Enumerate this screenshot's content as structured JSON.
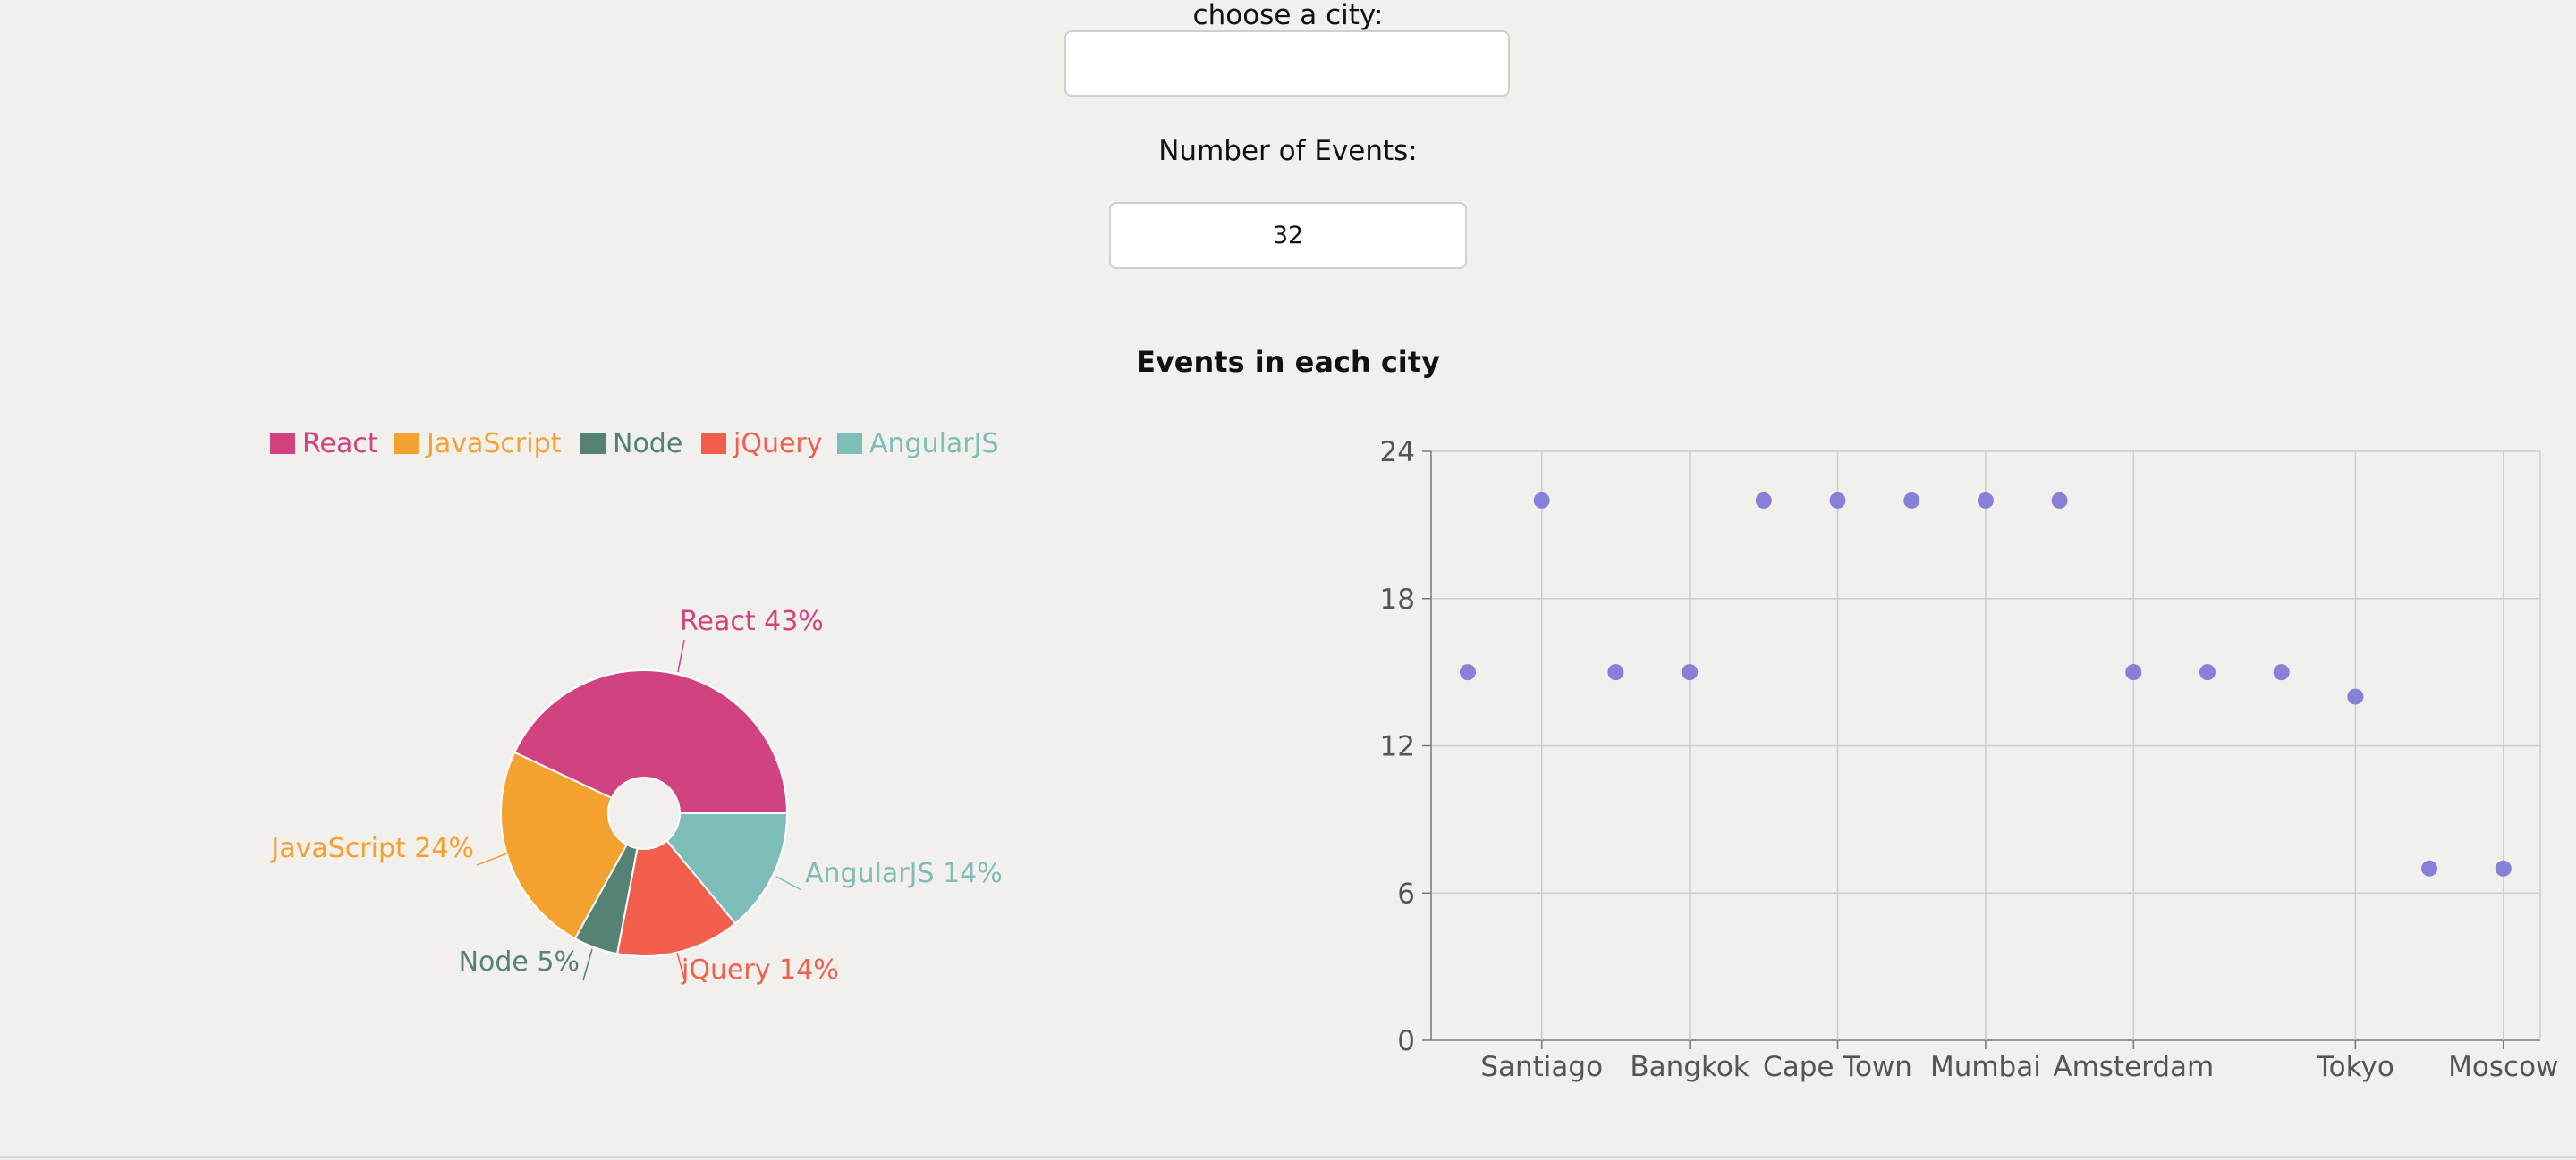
{
  "city_filter": {
    "label": "choose a city:",
    "value": "",
    "placeholder": ""
  },
  "event_count": {
    "label": "Number of Events:",
    "value": "32"
  },
  "section_title": "Events in each city",
  "colors": {
    "React": "#d04380",
    "JavaScript": "#f5a130",
    "Node": "#558272",
    "jQuery": "#f25e4c",
    "AngularJS": "#7fbdb8",
    "scatter_point": "#8880d8",
    "grid": "#cccccc",
    "axis_text": "#555555"
  },
  "chart_data": [
    {
      "type": "pie",
      "legend_position": "top",
      "slices": [
        {
          "name": "React",
          "value": 43,
          "label": "React 43%"
        },
        {
          "name": "AngularJS",
          "value": 14,
          "label": "AngularJS 14%"
        },
        {
          "name": "jQuery",
          "value": 14,
          "label": "jQuery 14%"
        },
        {
          "name": "Node",
          "value": 5,
          "label": "Node 5%"
        },
        {
          "name": "JavaScript",
          "value": 24,
          "label": "JavaScript 24%"
        }
      ],
      "legend": [
        "React",
        "JavaScript",
        "Node",
        "jQuery",
        "AngularJS"
      ]
    },
    {
      "type": "scatter",
      "x_tick_labels": [
        "Santiago",
        "Bangkok",
        "Cape Town",
        "Mumbai",
        "Amsterdam",
        "Tokyo",
        "Moscow"
      ],
      "y_ticks": [
        0,
        6,
        12,
        18,
        24
      ],
      "ylim": [
        0,
        24
      ],
      "grid": true,
      "points": [
        {
          "x": 0,
          "y": 15
        },
        {
          "x": 1,
          "y": 22
        },
        {
          "x": 2,
          "y": 15
        },
        {
          "x": 3,
          "y": 15
        },
        {
          "x": 4,
          "y": 22
        },
        {
          "x": 5,
          "y": 22
        },
        {
          "x": 6,
          "y": 22
        },
        {
          "x": 7,
          "y": 22
        },
        {
          "x": 8,
          "y": 22
        },
        {
          "x": 9,
          "y": 15
        },
        {
          "x": 10,
          "y": 15
        },
        {
          "x": 11,
          "y": 15
        },
        {
          "x": 12,
          "y": 14
        },
        {
          "x": 13,
          "y": 7
        },
        {
          "x": 14,
          "y": 7
        }
      ],
      "x_tick_positions": [
        1,
        3,
        5,
        7,
        9,
        12,
        14
      ]
    }
  ]
}
